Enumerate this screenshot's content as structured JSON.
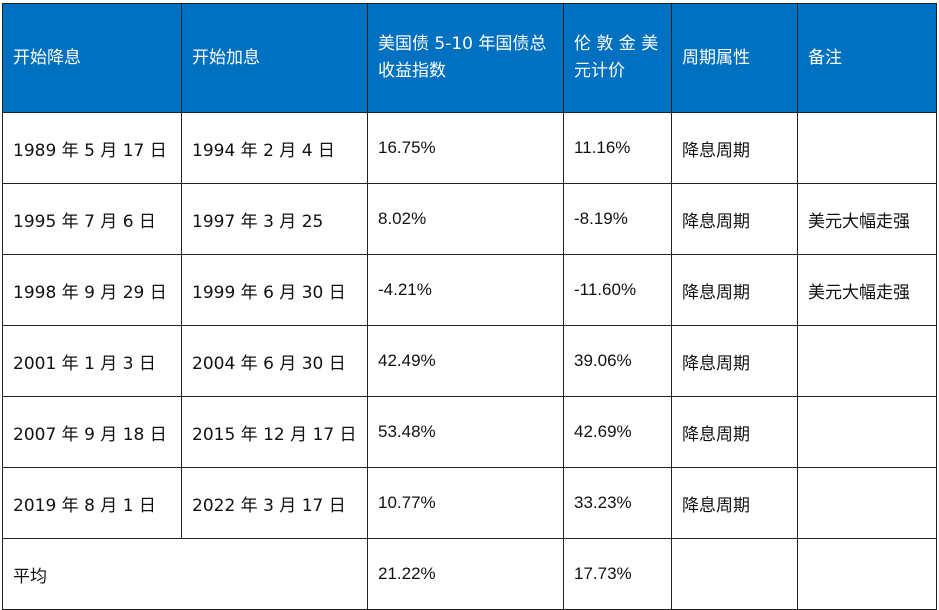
{
  "headers": [
    "开始降息",
    "开始加息",
    "美国债 5-10 年国债总收益指数",
    "伦 敦 金 美元计价",
    "周期属性",
    "备注"
  ],
  "rows": [
    {
      "start_cut": "1989 年 5 月 17 日",
      "start_hike": "1994 年 2 月 4 日",
      "bond": "16.75%",
      "gold": "11.16%",
      "cycle": "降息周期",
      "note": ""
    },
    {
      "start_cut": "1995 年 7 月 6 日",
      "start_hike": "1997 年 3 月 25",
      "bond": "8.02%",
      "gold": "-8.19%",
      "cycle": "降息周期",
      "note": "美元大幅走强"
    },
    {
      "start_cut": "1998 年 9 月 29 日",
      "start_hike": "1999 年 6 月 30 日",
      "bond": "-4.21%",
      "gold": "-11.60%",
      "cycle": "降息周期",
      "note": "美元大幅走强"
    },
    {
      "start_cut": "2001 年 1 月 3 日",
      "start_hike": "2004 年 6 月 30 日",
      "bond": "42.49%",
      "gold": "39.06%",
      "cycle": "降息周期",
      "note": ""
    },
    {
      "start_cut": "2007 年 9 月 18 日",
      "start_hike": "2015 年 12 月 17 日",
      "bond": "53.48%",
      "gold": "42.69%",
      "cycle": "降息周期",
      "note": ""
    },
    {
      "start_cut": "2019 年 8 月 1 日",
      "start_hike": "2022 年 3 月 17 日",
      "bond": "10.77%",
      "gold": "33.23%",
      "cycle": "降息周期",
      "note": ""
    }
  ],
  "average": {
    "label": "平均",
    "bond": "21.22%",
    "gold": "17.73%"
  },
  "colors": {
    "header_bg": "#0070c0",
    "header_text": "#ffffff",
    "border": "#222222"
  }
}
